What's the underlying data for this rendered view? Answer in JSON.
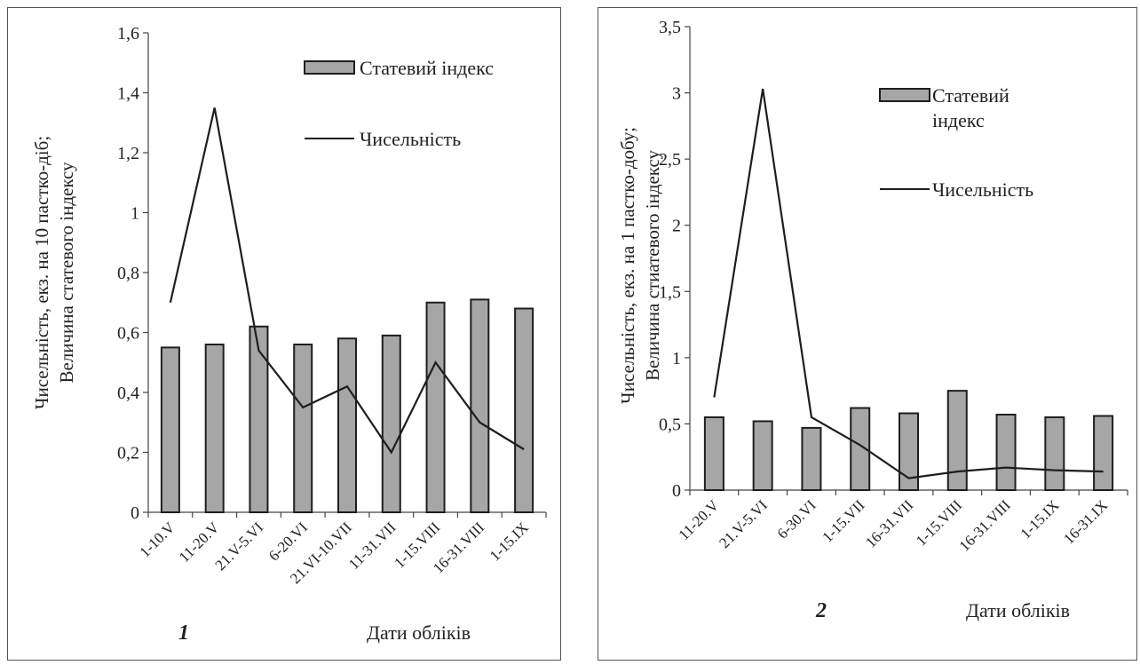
{
  "chart_data": [
    {
      "type": "bar",
      "panel_label": "1",
      "categories": [
        "1-10.V",
        "11-20.V",
        "21.V-5.VI",
        "6-20.VI",
        "21.VI-10.VII",
        "11-31.VII",
        "1-15.VIII",
        "16-31.VIII",
        "1-15.IX"
      ],
      "series": [
        {
          "name": "Статевий індекс",
          "kind": "bar",
          "values": [
            0.55,
            0.56,
            0.62,
            0.56,
            0.58,
            0.59,
            0.7,
            0.71,
            0.68
          ]
        },
        {
          "name": "Чисельність",
          "kind": "line",
          "values": [
            0.7,
            1.35,
            0.54,
            0.35,
            0.42,
            0.2,
            0.5,
            0.3,
            0.21
          ]
        }
      ],
      "ylabel_line1": "Чисельність, екз. на 10 пастко-діб;",
      "ylabel_line2": "Величина статевого індексу",
      "xlabel": "Дати обліків",
      "ylim": [
        0,
        1.6
      ],
      "yticks": [
        "0",
        "0,2",
        "0,4",
        "0,6",
        "0,8",
        "1",
        "1,2",
        "1,4",
        "1,6"
      ],
      "legend": [
        "Статевий індекс",
        "Чисельність"
      ],
      "legend_position": "top-right",
      "grid": false
    },
    {
      "type": "bar",
      "panel_label": "2",
      "categories": [
        "11-20.V",
        "21.V-5.VI",
        "6-30.VI",
        "1-15.VII",
        "16-31.VII",
        "1-15.VIII",
        "16-31.VIII",
        "1-15.IX",
        "16-31.IX"
      ],
      "series": [
        {
          "name": "Статевий індекс",
          "kind": "bar",
          "values": [
            0.55,
            0.52,
            0.47,
            0.62,
            0.58,
            0.75,
            0.57,
            0.55,
            0.56
          ]
        },
        {
          "name": "Чисельність",
          "kind": "line",
          "values": [
            0.7,
            3.03,
            0.55,
            0.34,
            0.09,
            0.14,
            0.17,
            0.15,
            0.14
          ]
        }
      ],
      "ylabel_line1": "Чисельність, екз. на 1 пастко-добу;",
      "ylabel_line2": "Величина стиатевого індексу",
      "xlabel": "Дати обліків",
      "ylim": [
        0,
        3.5
      ],
      "yticks": [
        "0",
        "0,5",
        "1",
        "1,5",
        "2",
        "2,5",
        "3",
        "3,5"
      ],
      "legend": [
        "Статевий індекс",
        "Чисельність"
      ],
      "legend_bar_line1": "Статевий",
      "legend_bar_line2": "індекс",
      "legend_position": "top-right",
      "grid": false
    }
  ],
  "colors": {
    "bar_fill": "#a6a6a6",
    "bar_stroke": "#1e1e1e",
    "line": "#1e1e1e",
    "axis": "#444444"
  }
}
